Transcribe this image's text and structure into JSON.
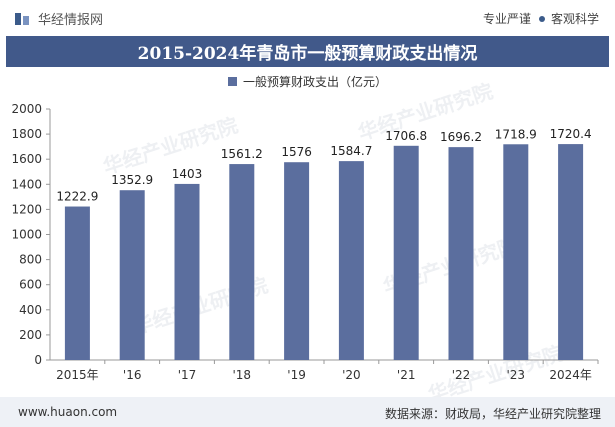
{
  "header": {
    "brand_name": "华经情报网",
    "tag_left": "专业严谨",
    "tag_right": "客观科学"
  },
  "title": "2015-2024年青岛市一般预算财政支出情况",
  "colors": {
    "title_bg": "#41598a",
    "bar": "#5b6e9e",
    "footer_bg": "#eef1f6"
  },
  "chart_data": {
    "type": "bar",
    "categories": [
      "2015年",
      "'16",
      "'17",
      "'18",
      "'19",
      "'20",
      "'21",
      "'22",
      "'23",
      "2024年"
    ],
    "series": [
      {
        "name": "一般预算财政支出（亿元）",
        "values": [
          1222.9,
          1352.9,
          1403,
          1561.2,
          1576,
          1584.7,
          1706.8,
          1696.2,
          1718.9,
          1720.4
        ],
        "labels": [
          "1222.9",
          "1352.9",
          "1403",
          "1561.2",
          "1576",
          "1584.7",
          "1706.8",
          "1696.2",
          "1718.9",
          "1720.4"
        ]
      }
    ],
    "ylim": [
      0,
      2000
    ],
    "yticks": [
      0,
      200,
      400,
      600,
      800,
      1000,
      1200,
      1400,
      1600,
      1800,
      2000
    ],
    "legend_position": "top-center",
    "grid": false
  },
  "footer": {
    "url": "www.huaon.com",
    "source": "数据来源：财政局，华经产业研究院整理"
  },
  "watermark": "华经产业研究院"
}
